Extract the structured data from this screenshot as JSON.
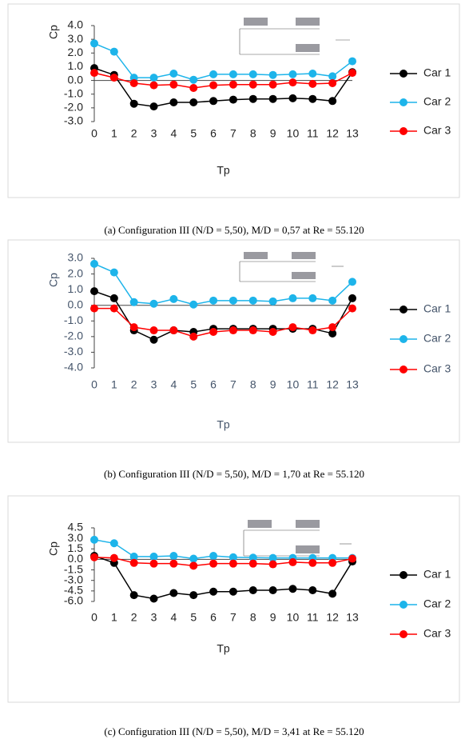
{
  "chart_data": [
    {
      "type": "line",
      "title": "Cp",
      "x_label": "Tp",
      "caption": "(a)  Configuration III (N/D = 5,50), M/D = 0,57 at Re = 55.120",
      "categories": [
        "0",
        "1",
        "2",
        "3",
        "4",
        "5",
        "6",
        "7",
        "8",
        "9",
        "10",
        "11",
        "12",
        "13"
      ],
      "ylim": [
        -3,
        4
      ],
      "yticks": [
        {
          "value": 4,
          "label": "4.0"
        },
        {
          "value": 3,
          "label": "3.0"
        },
        {
          "value": 2,
          "label": "2.0"
        },
        {
          "value": 1,
          "label": "1.0"
        },
        {
          "value": 0,
          "label": "0.0"
        },
        {
          "value": -1,
          "label": "-1.0"
        },
        {
          "value": -2,
          "label": "-2.0"
        },
        {
          "value": -3,
          "label": "-3.0"
        }
      ],
      "series": [
        {
          "name": "Car 1",
          "color": "#000000",
          "values": [
            0.9,
            0.4,
            -1.7,
            -1.9,
            -1.6,
            -1.6,
            -1.5,
            -1.4,
            -1.35,
            -1.35,
            -1.3,
            -1.35,
            -1.5,
            0.6
          ]
        },
        {
          "name": "Car 2",
          "color": "#1db4ea",
          "values": [
            2.7,
            2.1,
            0.2,
            0.2,
            0.5,
            0.05,
            0.45,
            0.45,
            0.45,
            0.4,
            0.45,
            0.5,
            0.3,
            1.4
          ]
        },
        {
          "name": "Car 3",
          "color": "#ff0000",
          "values": [
            0.55,
            0.2,
            -0.2,
            -0.35,
            -0.3,
            -0.55,
            -0.35,
            -0.3,
            -0.3,
            -0.3,
            -0.15,
            -0.25,
            -0.2,
            0.55
          ]
        }
      ]
    },
    {
      "type": "line",
      "title": "Cp",
      "x_label": "Tp",
      "caption": "(b)  Configuration III (N/D = 5,50),  M/D = 1,70 at Re = 55.120",
      "categories": [
        "0",
        "1",
        "2",
        "3",
        "4",
        "5",
        "6",
        "7",
        "8",
        "9",
        "10",
        "11",
        "12",
        "13"
      ],
      "ylim": [
        -4,
        3
      ],
      "yticks": [
        {
          "value": 3,
          "label": "3.0"
        },
        {
          "value": 2,
          "label": "2.0"
        },
        {
          "value": 1,
          "label": "1.0"
        },
        {
          "value": 0,
          "label": "0.0"
        },
        {
          "value": -1,
          "label": "-1.0"
        },
        {
          "value": -2,
          "label": "-2.0"
        },
        {
          "value": -3,
          "label": "-3.0"
        },
        {
          "value": -4,
          "label": "-4.0"
        }
      ],
      "series": [
        {
          "name": "Car 1",
          "color": "#000000",
          "values": [
            0.9,
            0.45,
            -1.6,
            -2.2,
            -1.6,
            -1.7,
            -1.5,
            -1.5,
            -1.5,
            -1.5,
            -1.5,
            -1.5,
            -1.8,
            0.45
          ]
        },
        {
          "name": "Car 2",
          "color": "#1db4ea",
          "values": [
            2.65,
            2.1,
            0.2,
            0.1,
            0.4,
            0.05,
            0.3,
            0.3,
            0.3,
            0.25,
            0.45,
            0.45,
            0.3,
            1.5
          ]
        },
        {
          "name": "Car 3",
          "color": "#ff0000",
          "values": [
            -0.2,
            -0.2,
            -1.4,
            -1.6,
            -1.6,
            -2.0,
            -1.7,
            -1.6,
            -1.6,
            -1.7,
            -1.4,
            -1.6,
            -1.4,
            -0.2
          ]
        }
      ]
    },
    {
      "type": "line",
      "title": "Cp",
      "x_label": "Tp",
      "caption": "(c)  Configuration III (N/D = 5,50), M/D = 3,41 at Re = 55.120",
      "categories": [
        "0",
        "1",
        "2",
        "3",
        "4",
        "5",
        "6",
        "7",
        "8",
        "9",
        "10",
        "11",
        "12",
        "13"
      ],
      "ylim": [
        -6,
        4.5
      ],
      "yticks": [
        4.5,
        {
          "value": 3,
          "label": "3.0"
        },
        1.5,
        {
          "value": 0,
          "label": "0.0"
        },
        -1.5,
        {
          "value": -3,
          "label": "-3.0"
        },
        -4.5,
        {
          "value": -6,
          "label": "-6.0"
        }
      ],
      "series": [
        {
          "name": "Car 1",
          "color": "#000000",
          "values": [
            0.5,
            -0.5,
            -5.1,
            -5.6,
            -4.8,
            -5.1,
            -4.6,
            -4.6,
            -4.4,
            -4.4,
            -4.2,
            -4.4,
            -4.9,
            -0.3
          ]
        },
        {
          "name": "Car 2",
          "color": "#1db4ea",
          "values": [
            2.8,
            2.3,
            0.4,
            0.4,
            0.5,
            0.1,
            0.5,
            0.3,
            0.25,
            0.2,
            0.2,
            0.2,
            0.2,
            0.2
          ]
        },
        {
          "name": "Car 3",
          "color": "#ff0000",
          "values": [
            0.3,
            0.2,
            -0.5,
            -0.6,
            -0.6,
            -0.9,
            -0.6,
            -0.6,
            -0.6,
            -0.7,
            -0.4,
            -0.5,
            -0.5,
            0.1
          ]
        }
      ]
    }
  ]
}
